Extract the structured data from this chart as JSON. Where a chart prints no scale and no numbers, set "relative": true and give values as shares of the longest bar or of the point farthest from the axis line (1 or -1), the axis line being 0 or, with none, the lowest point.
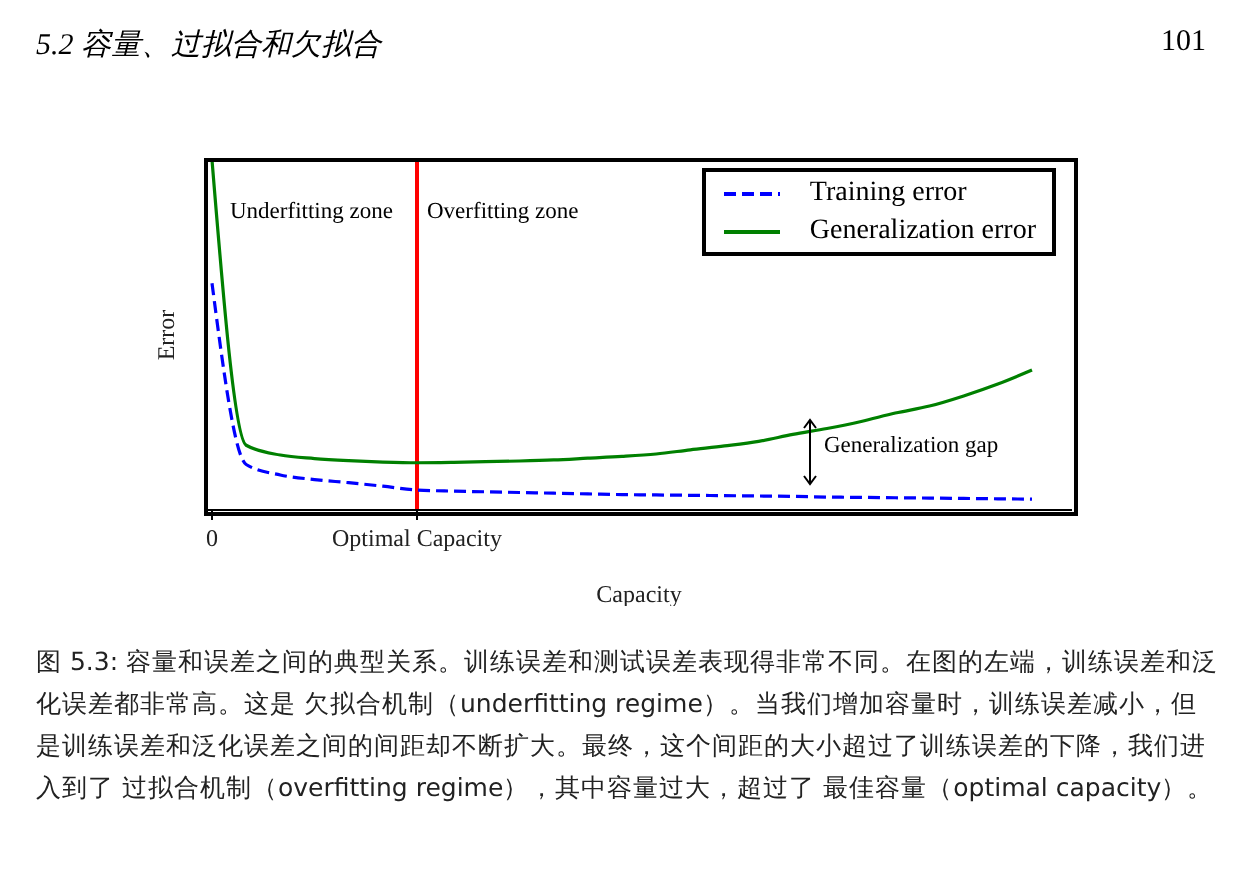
{
  "chart_data": {
    "type": "line",
    "relative": true,
    "xlabel": "Capacity",
    "ylabel": "Error",
    "categories": [
      "0",
      null,
      null,
      null,
      null,
      null,
      "Optimal Capacity",
      null,
      null,
      null,
      null,
      null,
      null,
      null,
      null,
      null,
      null,
      null,
      null,
      null,
      null,
      null,
      null,
      null,
      null
    ],
    "series": [
      {
        "name": "Training error",
        "color": "#0000ff",
        "line_style": "dashed",
        "values": [
          0.648,
          0.13,
          0.1,
          0.087,
          0.078,
          0.068,
          0.057,
          0.054,
          0.052,
          0.05,
          0.048,
          0.046,
          0.044,
          0.043,
          0.042,
          0.041,
          0.04,
          0.039,
          0.037,
          0.036,
          0.035,
          0.034,
          0.033,
          0.032,
          0.031
        ]
      },
      {
        "name": "Generalization error",
        "color": "#008000",
        "line_style": "solid",
        "values": [
          1,
          0.185,
          0.157,
          0.147,
          0.141,
          0.137,
          0.135,
          0.136,
          0.138,
          0.14,
          0.143,
          0.148,
          0.153,
          0.16,
          0.172,
          0.183,
          0.196,
          0.216,
          0.233,
          0.253,
          0.277,
          0.297,
          0.326,
          0.36,
          0.4
        ]
      }
    ],
    "ref_lines": [
      {
        "axis": "x",
        "value": "Optimal Capacity",
        "color": "#ff0000"
      }
    ],
    "legend": "top right",
    "grid": false,
    "marker": "none",
    "annotations": [
      "5.2  容量、过拟合和欠拟合",
      "101",
      "Underfitting zone",
      "Overfitting zone",
      "Generalization gap",
      "图 5.3: 容量和误差之间的典型关系。训练误差和测试误差表现得非常不同。在图的左端，训练误差和泛化误差都非常高。这是 欠拟合机制（underfitting regime）。当我们增加容量时，训练误差减小，但是训练误差和泛化误差之间的间距却不断扩大。最终，这个间距的大小超过了训练误差的下降，我们进入到了 过拟合机制（overfitting regime），其中容量过大，超过了 最佳容量（optimal capacity）。"
    ]
  }
}
